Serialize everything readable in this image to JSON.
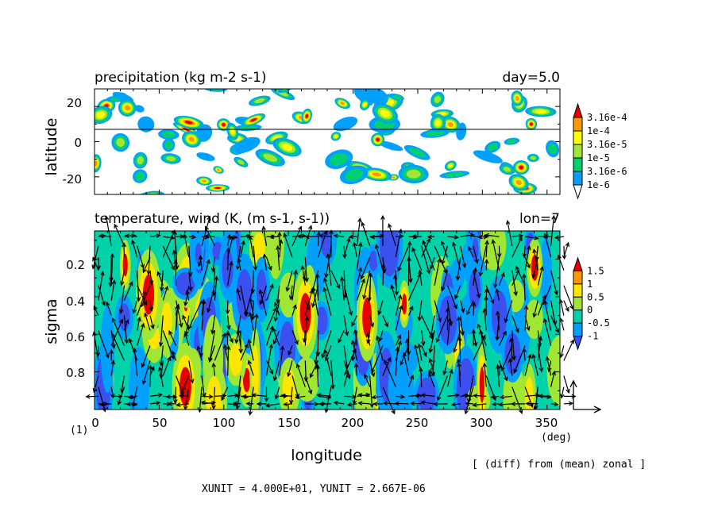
{
  "panels": {
    "top": {
      "title": "precipitation (kg m-2 s-1)",
      "info": "day=5.0",
      "ylabel": "latitude",
      "yticks": [
        "20",
        "0",
        "-20"
      ],
      "colorbar": [
        "3.16e-4",
        "1e-4",
        "3.16e-5",
        "1e-5",
        "3.16e-6",
        "1e-6"
      ]
    },
    "bottom": {
      "title": "temperature, wind (K, (m s-1, s-1))",
      "info": "lon=7",
      "ylabel": "sigma",
      "yticks": [
        "0.2",
        "0.4",
        "0.6",
        "0.8"
      ],
      "colorbar": [
        "1.5",
        "1",
        "0.5",
        "0",
        "-0.5",
        "-1"
      ]
    }
  },
  "xaxis": {
    "label": "longitude",
    "unit": "(deg)",
    "ticks": [
      "0",
      "50",
      "100",
      "150",
      "200",
      "250",
      "300",
      "350"
    ],
    "corner": "(1)"
  },
  "footer": {
    "note": "[ (diff) from (mean) zonal ]",
    "units": "XUNIT = 4.000E+01, YUNIT = 2.667E-06"
  },
  "colors": {
    "levels": [
      "#ffffff",
      "#00a0ff",
      "#00d070",
      "#a0e632",
      "#ffff00",
      "#ff9900",
      "#e60000"
    ],
    "temp_levels": [
      "#3c50f0",
      "#00a0ff",
      "#00d2aa",
      "#a0e632",
      "#ffe600",
      "#ff9900",
      "#e60000"
    ],
    "arrow": "#000000"
  },
  "chart_data": [
    {
      "type": "heatmap",
      "title": "precipitation (kg m-2 s-1)",
      "xlabel": "longitude",
      "ylabel": "latitude",
      "xlim": [
        0,
        360
      ],
      "ylim": [
        -30,
        30
      ],
      "color_levels": [
        1e-06,
        3.16e-06,
        1e-05,
        3.16e-05,
        0.0001,
        0.000316
      ],
      "reference_line_lat": 7
    },
    {
      "type": "heatmap",
      "title": "temperature, wind (K, (m s-1, s-1))",
      "xlabel": "longitude",
      "ylabel": "sigma",
      "xlim": [
        0,
        360
      ],
      "ylim": [
        1.0,
        0.05
      ],
      "color_levels": [
        -1,
        -0.5,
        0,
        0.5,
        1,
        1.5
      ],
      "vectors": "wind (m s-1, s-1)"
    }
  ]
}
